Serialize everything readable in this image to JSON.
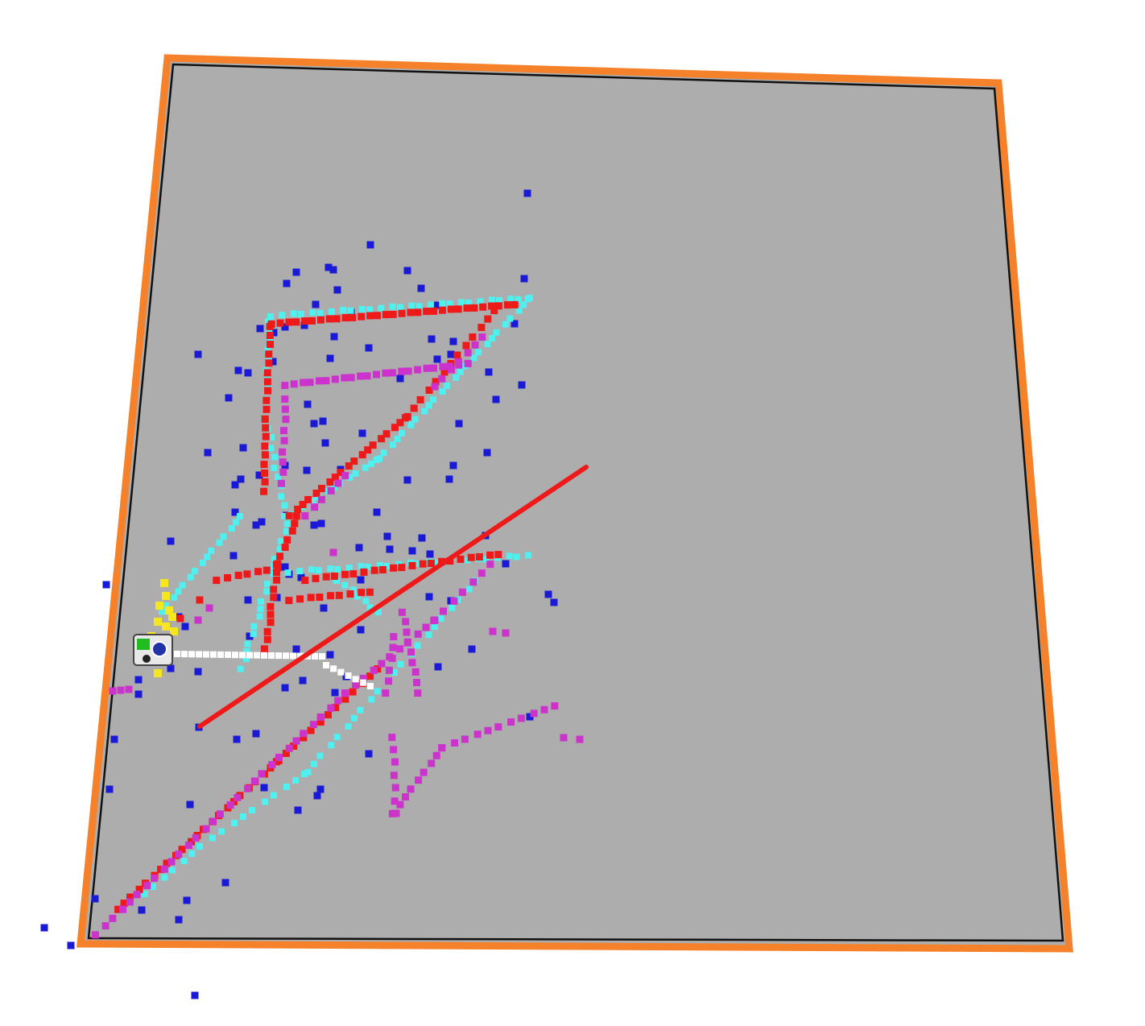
{
  "scene": {
    "type": "top-down occupancy / SLAM point visualization",
    "colors": {
      "background": "#ffffff",
      "floor": "#adadad",
      "border_outer": "#f5822a",
      "border_inner": "#111111",
      "landmarks": "#1a1ad6",
      "scan_cyan": "#4ef0f0",
      "scan_red": "#ee1a1a",
      "scan_magenta": "#cc33cc",
      "scan_yellow": "#f5e61e",
      "path_white": "#ffffff",
      "laser_line": "#ee1a1a",
      "robot_green": "#22bb22"
    },
    "layers": [
      "floor",
      "blue-landmarks",
      "cyan-scan",
      "red-scan",
      "magenta-scan",
      "yellow-scan",
      "white-path",
      "red-laser-line",
      "robot"
    ]
  }
}
